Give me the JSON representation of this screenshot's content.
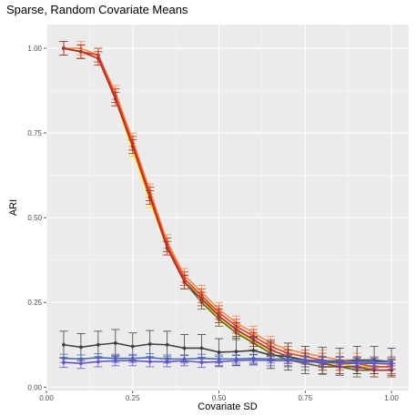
{
  "chart_data": {
    "type": "line",
    "title": "Sparse, Random Covariate Means",
    "xlabel": "Covariate SD",
    "ylabel": "ARI",
    "xlim": [
      0.0,
      1.05
    ],
    "ylim": [
      -0.01,
      1.07
    ],
    "x_ticks": [
      0.0,
      0.25,
      0.5,
      0.75,
      1.0
    ],
    "x_tick_labels": [
      "0.00",
      "0.25",
      "0.50",
      "0.75",
      "1.00"
    ],
    "y_ticks": [
      0.0,
      0.25,
      0.5,
      0.75,
      1.0
    ],
    "y_tick_labels": [
      "0.00",
      "0.25",
      "0.50",
      "0.75",
      "1.00"
    ],
    "grid": true,
    "legend": "none",
    "x": [
      0.05,
      0.1,
      0.15,
      0.2,
      0.25,
      0.3,
      0.35,
      0.4,
      0.45,
      0.5,
      0.55,
      0.6,
      0.65,
      0.7,
      0.75,
      0.8,
      0.85,
      0.9,
      0.95,
      1.0
    ],
    "series": [
      {
        "color": "#FFD700",
        "values": [
          1.0,
          0.99,
          0.97,
          0.85,
          0.7,
          0.55,
          0.41,
          0.31,
          0.26,
          0.2,
          0.17,
          0.13,
          0.11,
          0.09,
          0.08,
          0.07,
          0.07,
          0.06,
          0.06,
          0.06
        ],
        "err": 0.02
      },
      {
        "color": "#9ACD32",
        "values": [
          1.0,
          0.99,
          0.98,
          0.86,
          0.72,
          0.57,
          0.42,
          0.31,
          0.27,
          0.21,
          0.17,
          0.14,
          0.11,
          0.09,
          0.08,
          0.07,
          0.07,
          0.06,
          0.06,
          0.06
        ],
        "err": 0.02
      },
      {
        "color": "#556B2F",
        "values": [
          1.0,
          0.99,
          0.98,
          0.86,
          0.72,
          0.57,
          0.42,
          0.31,
          0.25,
          0.2,
          0.16,
          0.13,
          0.1,
          0.08,
          0.07,
          0.06,
          0.06,
          0.05,
          0.05,
          0.05
        ],
        "err": 0.02
      },
      {
        "color": "#FF8C42",
        "values": [
          1.0,
          1.0,
          0.98,
          0.87,
          0.73,
          0.58,
          0.43,
          0.33,
          0.28,
          0.23,
          0.19,
          0.16,
          0.13,
          0.11,
          0.1,
          0.09,
          0.08,
          0.08,
          0.07,
          0.07
        ],
        "err": 0.02
      },
      {
        "color": "#E8402E",
        "values": [
          1.0,
          0.99,
          0.98,
          0.86,
          0.72,
          0.57,
          0.42,
          0.32,
          0.27,
          0.22,
          0.18,
          0.15,
          0.12,
          0.1,
          0.09,
          0.08,
          0.07,
          0.07,
          0.06,
          0.06
        ],
        "err": 0.02
      },
      {
        "color": "#A83232",
        "values": [
          1.0,
          0.99,
          0.97,
          0.85,
          0.71,
          0.56,
          0.41,
          0.31,
          0.26,
          0.21,
          0.17,
          0.14,
          0.11,
          0.09,
          0.08,
          0.07,
          0.06,
          0.06,
          0.05,
          0.05
        ],
        "err": 0.02
      },
      {
        "color": "#404040",
        "values": [
          0.125,
          0.118,
          0.125,
          0.13,
          0.12,
          0.127,
          0.125,
          0.115,
          0.115,
          0.103,
          0.105,
          0.108,
          0.095,
          0.09,
          0.08,
          0.078,
          0.075,
          0.08,
          0.08,
          0.075
        ],
        "err": 0.04
      },
      {
        "color": "#3E6FB0",
        "values": [
          0.085,
          0.083,
          0.087,
          0.085,
          0.085,
          0.087,
          0.083,
          0.083,
          0.085,
          0.083,
          0.083,
          0.085,
          0.083,
          0.083,
          0.08,
          0.078,
          0.078,
          0.075,
          0.075,
          0.075
        ],
        "err": 0.012
      },
      {
        "color": "#6A4FC8",
        "values": [
          0.073,
          0.07,
          0.075,
          0.078,
          0.078,
          0.075,
          0.075,
          0.078,
          0.073,
          0.075,
          0.078,
          0.08,
          0.078,
          0.078,
          0.075,
          0.073,
          0.073,
          0.07,
          0.07,
          0.068
        ],
        "err": 0.015
      }
    ]
  }
}
